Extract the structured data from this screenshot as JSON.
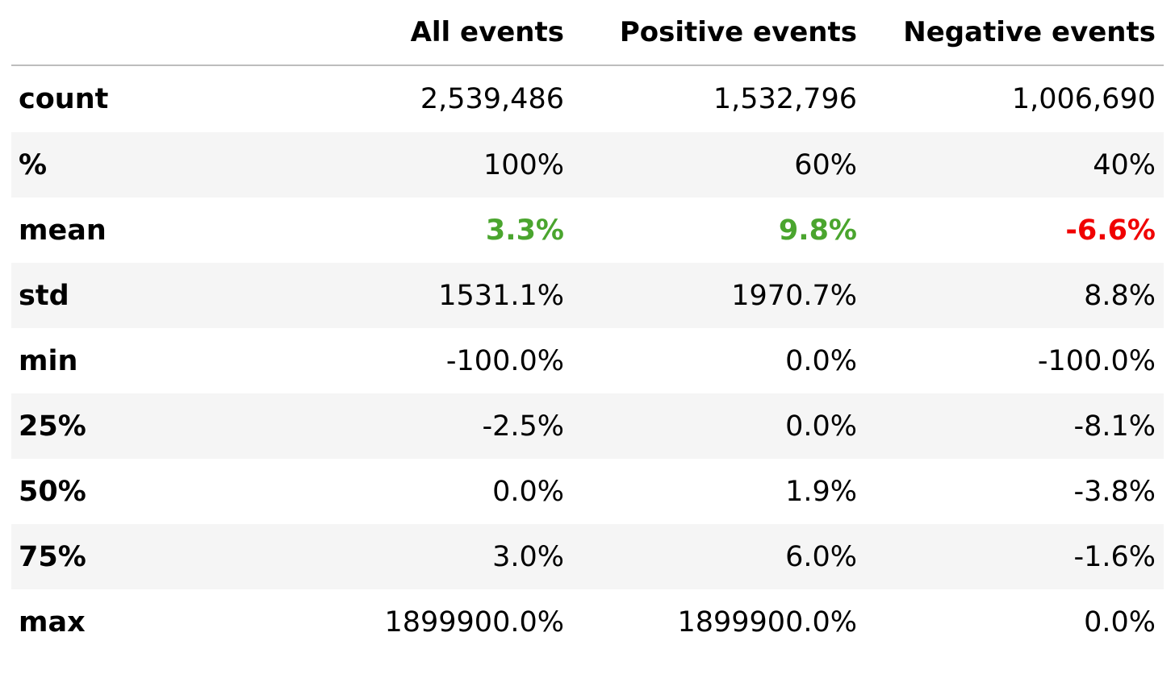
{
  "columns": [
    "",
    "All events",
    "Positive events",
    "Negative events"
  ],
  "rows": [
    {
      "label": "count",
      "values": [
        "2,539,486",
        "1,532,796",
        "1,006,690"
      ]
    },
    {
      "label": "%",
      "values": [
        "100%",
        "60%",
        "40%"
      ]
    },
    {
      "label": "mean",
      "values": [
        "3.3%",
        "9.8%",
        "-6.6%"
      ]
    },
    {
      "label": "std",
      "values": [
        "1531.1%",
        "1970.7%",
        "8.8%"
      ]
    },
    {
      "label": "min",
      "values": [
        "-100.0%",
        "0.0%",
        "-100.0%"
      ]
    },
    {
      "label": "25%",
      "values": [
        "-2.5%",
        "0.0%",
        "-8.1%"
      ]
    },
    {
      "label": "50%",
      "values": [
        "0.0%",
        "1.9%",
        "-3.8%"
      ]
    },
    {
      "label": "75%",
      "values": [
        "3.0%",
        "6.0%",
        "-1.6%"
      ]
    },
    {
      "label": "max",
      "values": [
        "1899900.0%",
        "1899900.0%",
        "0.0%"
      ]
    }
  ],
  "colors": {
    "positive": "#4aa52e",
    "negative": "#f00000",
    "stripe": "#f5f5f5",
    "header_rule": "#bdbdbd"
  }
}
